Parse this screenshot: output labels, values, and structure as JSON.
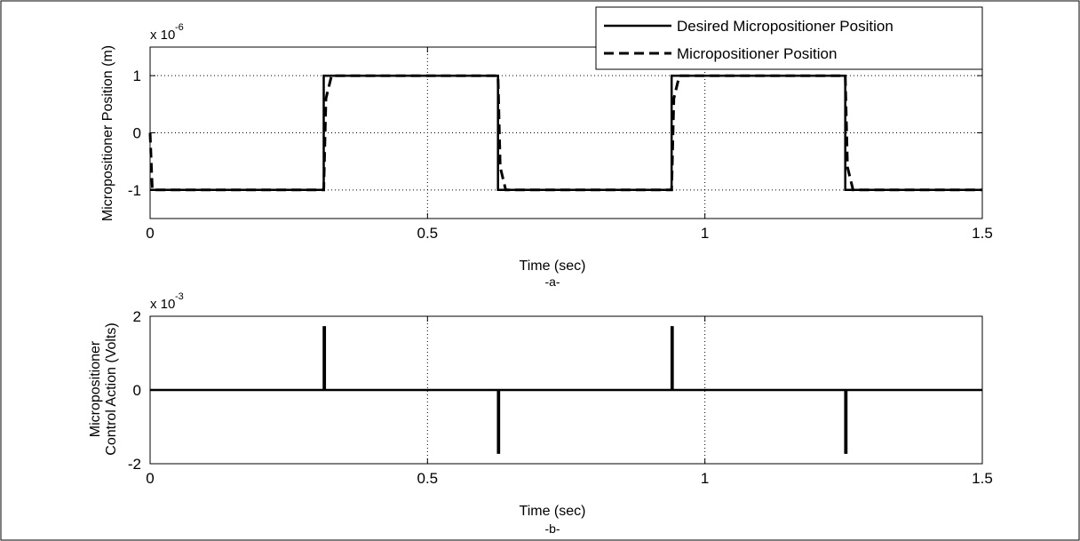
{
  "chart_data": [
    {
      "panel_id": "a",
      "type": "line",
      "caption": "-a-",
      "xlabel": "Time (sec)",
      "ylabel": "Micropositioner Position (m)",
      "y_exponent_base": "x 10",
      "y_exponent_power": "-6",
      "xlim": [
        0,
        1.5
      ],
      "ylim": [
        -1.5,
        1.5
      ],
      "x_ticks": [
        0,
        0.5,
        1,
        1.5
      ],
      "x_tick_labels": [
        "0",
        "0.5",
        "1",
        "1.5"
      ],
      "y_ticks": [
        -1,
        0,
        1
      ],
      "y_tick_labels": [
        "-1",
        "0",
        "1"
      ],
      "grid": true,
      "legend_position": "top-right",
      "legend": [
        "Desired Micropositioner Position",
        "Micropositioner Position"
      ],
      "series": [
        {
          "name": "Desired Micropositioner Position",
          "style": "solid",
          "color": "#000000",
          "x": [
            0.0,
            0.313,
            0.313,
            0.627,
            0.627,
            0.94,
            0.94,
            1.253,
            1.253,
            1.5
          ],
          "y": [
            -1,
            -1,
            1,
            1,
            -1,
            -1,
            1,
            1,
            -1,
            -1
          ]
        },
        {
          "name": "Micropositioner Position",
          "style": "dashed",
          "color": "#000000",
          "x": [
            0.0,
            0.004,
            0.313,
            0.317,
            0.327,
            0.627,
            0.631,
            0.641,
            0.94,
            0.944,
            0.954,
            1.253,
            1.257,
            1.267,
            1.5
          ],
          "y": [
            0,
            -1,
            -1,
            0.6,
            1,
            1,
            -0.6,
            -1,
            -1,
            0.6,
            1,
            1,
            -0.6,
            -1,
            -1
          ]
        }
      ]
    },
    {
      "panel_id": "b",
      "type": "line",
      "caption": "-b-",
      "xlabel": "Time (sec)",
      "ylabel_lines": [
        "Micropositioner",
        "Control Action (Volts)"
      ],
      "y_exponent_base": "x 10",
      "y_exponent_power": "-3",
      "xlim": [
        0,
        1.5
      ],
      "ylim": [
        -2,
        2
      ],
      "x_ticks": [
        0,
        0.5,
        1,
        1.5
      ],
      "x_tick_labels": [
        "0",
        "0.5",
        "1",
        "1.5"
      ],
      "y_ticks": [
        -2,
        0,
        2
      ],
      "y_tick_labels": [
        "-2",
        "0",
        "2"
      ],
      "grid": true,
      "series": [
        {
          "style": "solid",
          "color": "#000000",
          "x": [
            0.0,
            0.313,
            0.313,
            0.315,
            0.315,
            0.627,
            0.627,
            0.629,
            0.629,
            0.94,
            0.94,
            0.942,
            0.942,
            1.253,
            1.253,
            1.255,
            1.255,
            1.5
          ],
          "y": [
            0,
            0,
            1.7,
            1.7,
            0,
            0,
            -1.7,
            -1.7,
            0,
            0,
            1.7,
            1.7,
            0,
            0,
            -1.7,
            -1.7,
            0,
            0
          ]
        }
      ]
    }
  ]
}
